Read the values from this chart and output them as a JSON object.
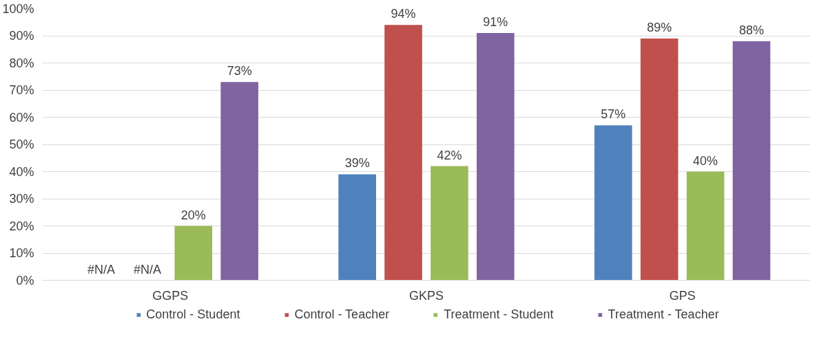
{
  "chart_data": {
    "type": "bar",
    "categories": [
      "GGPS",
      "GKPS",
      "GPS"
    ],
    "series": [
      {
        "name": "Control - Student",
        "color": "#4f81bd",
        "values": [
          null,
          39,
          57
        ],
        "value_labels": [
          "#N/A",
          "39%",
          "57%"
        ]
      },
      {
        "name": "Control - Teacher",
        "color": "#c0504d",
        "values": [
          null,
          94,
          89
        ],
        "value_labels": [
          "#N/A",
          "94%",
          "89%"
        ]
      },
      {
        "name": "Treatment - Student",
        "color": "#9bbb59",
        "values": [
          20,
          42,
          40
        ],
        "value_labels": [
          "20%",
          "42%",
          "40%"
        ]
      },
      {
        "name": "Treatment - Teacher",
        "color": "#8064a2",
        "values": [
          73,
          91,
          88
        ],
        "value_labels": [
          "73%",
          "91%",
          "88%"
        ]
      }
    ],
    "ylim": [
      0,
      100
    ],
    "yticks": [
      {
        "value": 0,
        "label": "0%"
      },
      {
        "value": 10,
        "label": "10%"
      },
      {
        "value": 20,
        "label": "20%"
      },
      {
        "value": 30,
        "label": "30%"
      },
      {
        "value": 40,
        "label": "40%"
      },
      {
        "value": 50,
        "label": "50%"
      },
      {
        "value": 60,
        "label": "60%"
      },
      {
        "value": 70,
        "label": "70%"
      },
      {
        "value": 80,
        "label": "80%"
      },
      {
        "value": 90,
        "label": "90%"
      },
      {
        "value": 100,
        "label": "100%"
      }
    ],
    "grid": "y",
    "legend": "bottom"
  }
}
